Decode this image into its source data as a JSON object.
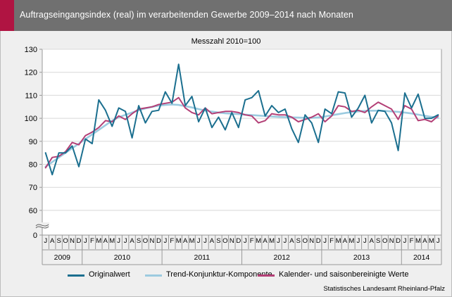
{
  "header": {
    "title": "Auftragseingangsindex (real) im verarbeitenden Gewerbe 2009–2014 nach Monaten"
  },
  "source": "Statistisches Landesamt Rheinland-Pfalz",
  "colors": {
    "header_bg": "#707070",
    "accent": "#b01442",
    "original": "#1b6f8f",
    "trend": "#9ccbe0",
    "adjusted": "#b33f76"
  },
  "chart_data": {
    "type": "line",
    "title": "Messzahl 2010=100",
    "xlabel": "",
    "ylabel": "",
    "ylim": [
      0,
      130
    ],
    "yticks": [
      "0",
      "60",
      "70",
      "80",
      "90",
      "100",
      "110",
      "120",
      "130"
    ],
    "axis_break": true,
    "grid": true,
    "legend_position": "bottom",
    "month_labels": [
      "J",
      "A",
      "S",
      "O",
      "N",
      "D",
      "J",
      "F",
      "M",
      "A",
      "M",
      "J",
      "J",
      "A",
      "S",
      "O",
      "N",
      "D",
      "J",
      "F",
      "M",
      "A",
      "M",
      "J",
      "J",
      "A",
      "S",
      "O",
      "N",
      "D",
      "J",
      "F",
      "M",
      "A",
      "M",
      "J",
      "J",
      "A",
      "S",
      "O",
      "N",
      "D",
      "J",
      "F",
      "M",
      "A",
      "M",
      "J",
      "J",
      "A",
      "S",
      "O",
      "N",
      "D",
      "J",
      "F",
      "M",
      "A",
      "M",
      "J"
    ],
    "year_labels": [
      "2009",
      "2010",
      "2011",
      "2012",
      "2013",
      "2014"
    ],
    "year_month_counts": [
      6,
      12,
      12,
      12,
      12,
      6
    ],
    "series": [
      {
        "name": "Originalwert",
        "values": [
          85,
          75.5,
          85,
          85,
          88,
          79,
          91,
          89,
          108,
          103.5,
          96.5,
          104.5,
          103,
          91.5,
          105.5,
          98,
          103,
          103.5,
          111.5,
          106.5,
          123.5,
          105.5,
          109.5,
          98.5,
          104.5,
          96,
          100.5,
          95,
          102.5,
          96,
          108,
          109,
          112,
          101,
          105.5,
          102.5,
          104,
          95.5,
          89.5,
          101.5,
          98,
          89.5,
          104,
          102,
          111.5,
          111,
          100.5,
          104.5,
          110,
          98,
          103.5,
          103,
          98,
          86,
          111,
          104.5,
          110.5,
          100,
          100,
          101.5
        ]
      },
      {
        "name": "Trend-Konjunktur-Komponente",
        "values": [
          79,
          81,
          83,
          85,
          87,
          89,
          91,
          93,
          95,
          97,
          99,
          100.5,
          101.5,
          102.5,
          103.5,
          104.3,
          105,
          105.5,
          105.8,
          106,
          105.8,
          105.3,
          104.7,
          104,
          103.4,
          102.9,
          102.5,
          102.2,
          102,
          101.8,
          101.6,
          101.4,
          101.2,
          101,
          100.8,
          100.6,
          100.5,
          100.4,
          100.3,
          100.2,
          100.2,
          100.4,
          100.8,
          101.3,
          101.8,
          102.3,
          102.7,
          103,
          103.2,
          103.3,
          103.3,
          103.2,
          103,
          102.8,
          102.5,
          102.1,
          101.6,
          101.1,
          100.6,
          100.2
        ]
      },
      {
        "name": "Kalender- und saisonbereinigte Werte",
        "values": [
          78.5,
          83,
          83.5,
          85.5,
          89.5,
          88.5,
          92.5,
          94,
          96,
          99,
          98.5,
          101,
          99.5,
          102,
          104,
          104.5,
          105,
          106,
          106.5,
          107,
          109,
          104.5,
          102.5,
          101.5,
          104.5,
          102,
          102.5,
          103,
          103,
          102.5,
          101.5,
          101,
          98,
          99,
          102,
          101.5,
          101.5,
          100.5,
          98.5,
          99.5,
          100.5,
          102,
          98.5,
          101,
          105.5,
          105,
          103,
          103.5,
          102.5,
          105,
          107,
          105.5,
          104,
          99.5,
          105.5,
          104,
          99,
          99.5,
          98.5,
          101
        ]
      }
    ]
  }
}
